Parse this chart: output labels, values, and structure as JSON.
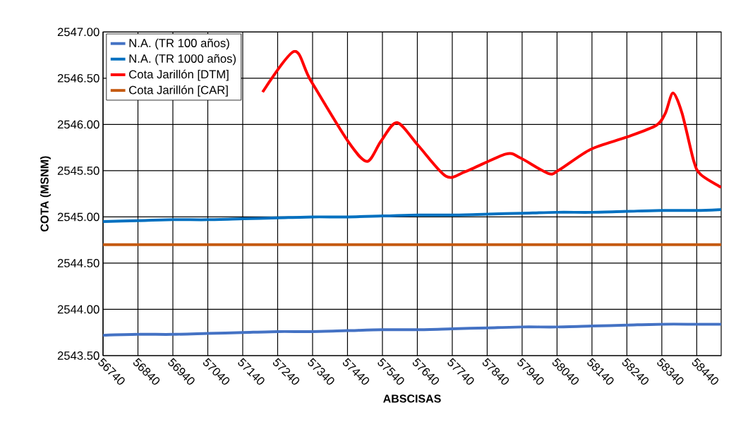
{
  "chart_data": {
    "type": "line",
    "xlabel": "ABSCISAS",
    "ylabel": "COTA (MSNM)",
    "xlim": [
      56740,
      58510
    ],
    "ylim": [
      2543.5,
      2547
    ],
    "xticks": [
      56740,
      56840,
      56940,
      57040,
      57140,
      57240,
      57340,
      57440,
      57540,
      57640,
      57740,
      57840,
      57940,
      58040,
      58140,
      58240,
      58340,
      58440
    ],
    "yticks": [
      {
        "value": 2543.5,
        "label": "2543.50"
      },
      {
        "value": 2544,
        "label": "2544.00"
      },
      {
        "value": 2544.5,
        "label": "2544.50"
      },
      {
        "value": 2545,
        "label": "2545.00"
      },
      {
        "value": 2545.5,
        "label": "2545.50"
      },
      {
        "value": 2546,
        "label": "2546.00"
      },
      {
        "value": 2546.5,
        "label": "2546.50"
      },
      {
        "value": 2547,
        "label": "2547.00"
      }
    ],
    "grid": true,
    "legend": "top left",
    "marker": "none",
    "line_style": "solid",
    "series": [
      {
        "name": "N.A. (TR 100 años)",
        "color": "#4472c4",
        "x": [
          56740,
          56840,
          56940,
          57040,
          57140,
          57240,
          57340,
          57440,
          57540,
          57640,
          57740,
          57840,
          57940,
          58040,
          58140,
          58240,
          58340,
          58440,
          58510
        ],
        "values": [
          2543.72,
          2543.73,
          2543.73,
          2543.74,
          2543.75,
          2543.76,
          2543.76,
          2543.77,
          2543.78,
          2543.78,
          2543.79,
          2543.8,
          2543.81,
          2543.81,
          2543.82,
          2543.83,
          2543.84,
          2543.84,
          2543.84
        ]
      },
      {
        "name": "N.A. (TR 1000 años)",
        "color": "#0070c0",
        "x": [
          56740,
          56840,
          56940,
          57040,
          57140,
          57240,
          57340,
          57440,
          57540,
          57640,
          57740,
          57840,
          57940,
          58040,
          58140,
          58240,
          58340,
          58440,
          58510
        ],
        "values": [
          2544.95,
          2544.96,
          2544.97,
          2544.97,
          2544.98,
          2544.99,
          2545.0,
          2545.0,
          2545.01,
          2545.02,
          2545.02,
          2545.03,
          2545.04,
          2545.05,
          2545.05,
          2545.06,
          2545.07,
          2545.07,
          2545.08
        ]
      },
      {
        "name": "Cota Jarillón [DTM]",
        "color": "#ff0000",
        "x": [
          57197,
          57287,
          57334,
          57441,
          57496,
          57536,
          57582,
          57643,
          57722,
          57778,
          57893,
          57934,
          58015,
          58047,
          58136,
          58237,
          58324,
          58350,
          58372,
          58398,
          58431,
          58451,
          58510
        ],
        "values": [
          2546.35,
          2546.79,
          2546.48,
          2545.82,
          2545.6,
          2545.82,
          2546.02,
          2545.77,
          2545.44,
          2545.49,
          2545.68,
          2545.64,
          2545.47,
          2545.51,
          2545.73,
          2545.86,
          2545.99,
          2546.12,
          2546.34,
          2546.12,
          2545.61,
          2545.46,
          2545.32
        ]
      },
      {
        "name": "Cota Jarillón [CAR]",
        "color": "#c55a11",
        "x": [
          56740,
          58510
        ],
        "values": [
          2544.7,
          2544.7
        ]
      }
    ]
  }
}
